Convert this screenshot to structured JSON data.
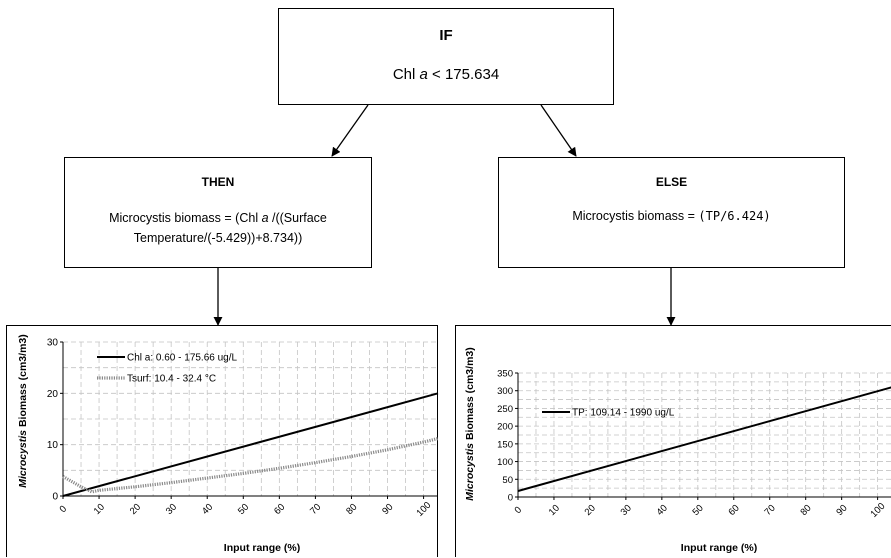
{
  "if_box": {
    "heading": "IF",
    "condition_prefix": "Chl ",
    "condition_italic": "a",
    "condition_suffix": " < 175.634"
  },
  "then_box": {
    "heading": "THEN",
    "line1_prefix": "Microcystis biomass = (Chl ",
    "line1_italic": "a",
    "line1_suffix": " /((Surface",
    "line2": "Temperature/(-5.429))+8.734))"
  },
  "else_box": {
    "heading": "ELSE",
    "formula_prefix": "Microcystis biomass = ",
    "formula_mono": "(TP/6.424)"
  },
  "charts": {
    "left": {
      "ylabel_italic": "Microcystis",
      "ylabel_rest": " Biomass (cm3/m3)",
      "xlabel": "Input range (%)"
    },
    "right": {
      "ylabel_italic": "Microcystis",
      "ylabel_rest": " Biomass (cm3/m3)",
      "xlabel": "Input range (%)"
    }
  },
  "chart_data": [
    {
      "type": "line",
      "xlabel": "Input range (%)",
      "ylabel": "Microcystis Biomass (cm3/m3)",
      "xlim": [
        0,
        104
      ],
      "ylim": [
        0,
        30
      ],
      "x_ticks": [
        "0",
        "10",
        "20",
        "30",
        "40",
        "50",
        "60",
        "70",
        "80",
        "90",
        "100"
      ],
      "y_ticks": [
        "0",
        "10",
        "20",
        "30"
      ],
      "grid": true,
      "legend_position": "top-left",
      "series": [
        {
          "name": "Chl a: 0.60 - 175.66 ug/L",
          "style": "solid",
          "x": [
            0,
            104
          ],
          "y": [
            0,
            20
          ]
        },
        {
          "name": "Tsurf: 10.4 - 32.4 °C",
          "style": "dotted",
          "x": [
            0,
            5,
            8,
            10,
            20,
            30,
            40,
            50,
            60,
            70,
            80,
            90,
            100,
            104
          ],
          "y": [
            3.8,
            1.8,
            0.8,
            1.1,
            1.8,
            2.6,
            3.5,
            4.4,
            5.4,
            6.5,
            7.7,
            9.0,
            10.5,
            11.2
          ]
        }
      ]
    },
    {
      "type": "line",
      "xlabel": "Input range (%)",
      "ylabel": "Microcystis Biomass (cm3/m3)",
      "xlim": [
        0,
        104
      ],
      "ylim": [
        0,
        350
      ],
      "x_ticks": [
        "0",
        "10",
        "20",
        "30",
        "40",
        "50",
        "60",
        "70",
        "80",
        "90",
        "100"
      ],
      "y_ticks": [
        "0",
        "50",
        "100",
        "150",
        "200",
        "250",
        "300",
        "350"
      ],
      "grid": true,
      "legend_position": "top-left",
      "series": [
        {
          "name": "TP: 109.14 - 1990 ug/L",
          "style": "solid",
          "x": [
            0,
            104
          ],
          "y": [
            17,
            310
          ]
        }
      ]
    }
  ]
}
